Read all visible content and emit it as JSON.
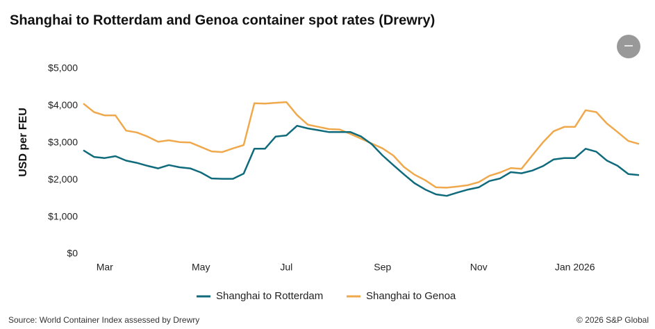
{
  "chart_data": {
    "type": "line",
    "title": "Shanghai to Rotterdam and Genoa container spot rates (Drewry)",
    "y_label": "USD per FEU",
    "source": "Source: World Container Index assessed by Drewry",
    "copyright": "© 2026 S&P Global",
    "categories": [
      null,
      null,
      "Mar",
      null,
      null,
      null,
      null,
      null,
      null,
      null,
      null,
      "May",
      null,
      null,
      null,
      null,
      null,
      null,
      null,
      "Jul",
      null,
      null,
      null,
      null,
      null,
      null,
      null,
      null,
      "Sep",
      null,
      null,
      null,
      null,
      null,
      null,
      null,
      null,
      "Nov",
      null,
      null,
      null,
      null,
      null,
      null,
      null,
      null,
      "Jan 2026",
      null,
      null,
      null,
      null,
      null,
      null
    ],
    "series": [
      {
        "name": "Shanghai to Rotterdam",
        "color": "#0f6b7b",
        "values": [
          2800,
          2620,
          2590,
          2640,
          2520,
          2460,
          2380,
          2310,
          2400,
          2340,
          2310,
          2200,
          2040,
          2030,
          2030,
          2170,
          2840,
          2840,
          3170,
          3200,
          3460,
          3390,
          3340,
          3290,
          3290,
          3290,
          3170,
          2960,
          2660,
          2400,
          2150,
          1910,
          1740,
          1610,
          1570,
          1660,
          1740,
          1800,
          1970,
          2040,
          2210,
          2180,
          2250,
          2370,
          2550,
          2590,
          2590,
          2840,
          2760,
          2520,
          2380,
          2160,
          2130
        ]
      },
      {
        "name": "Shanghai to Genoa",
        "color": "#efa94c",
        "values": [
          4060,
          3830,
          3740,
          3740,
          3330,
          3280,
          3170,
          3030,
          3070,
          3020,
          3010,
          2890,
          2770,
          2750,
          2850,
          2940,
          4070,
          4060,
          4080,
          4100,
          3750,
          3490,
          3430,
          3370,
          3360,
          3240,
          3110,
          2980,
          2850,
          2660,
          2350,
          2140,
          1990,
          1800,
          1790,
          1820,
          1860,
          1940,
          2110,
          2200,
          2320,
          2300,
          2660,
          3010,
          3310,
          3430,
          3430,
          3880,
          3830,
          3520,
          3290,
          3050,
          2970
        ]
      }
    ],
    "ylim": [
      0,
      5000
    ],
    "yticks": [
      {
        "value": 0,
        "label": "$0"
      },
      {
        "value": 1000,
        "label": "$1,000"
      },
      {
        "value": 2000,
        "label": "$2,000"
      },
      {
        "value": 3000,
        "label": "$3,000"
      },
      {
        "value": 4000,
        "label": "$4,000"
      },
      {
        "value": 5000,
        "label": "$5,000"
      }
    ],
    "grid": false,
    "legend": "bottom"
  }
}
